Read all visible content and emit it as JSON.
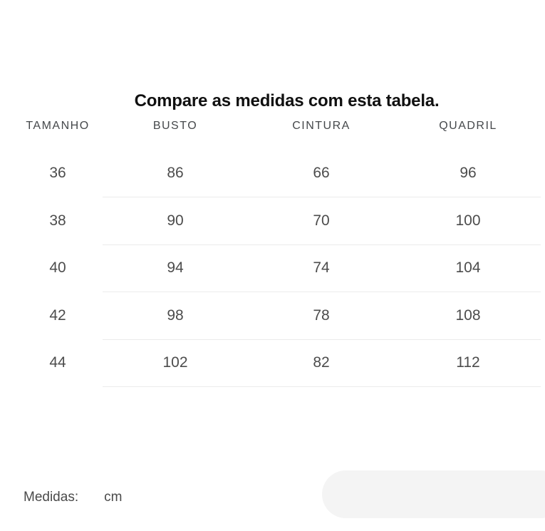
{
  "title": "Compare as medidas com esta tabela.",
  "table": {
    "headers": [
      "TAMANHO",
      "BUSTO",
      "CINTURA",
      "QUADRIL"
    ],
    "rows": [
      [
        "36",
        "86",
        "66",
        "96"
      ],
      [
        "38",
        "90",
        "70",
        "100"
      ],
      [
        "40",
        "94",
        "74",
        "104"
      ],
      [
        "42",
        "98",
        "78",
        "108"
      ],
      [
        "44",
        "102",
        "82",
        "112"
      ]
    ]
  },
  "footer": {
    "label": "Medidas:",
    "unit": "cm"
  },
  "colors": {
    "background": "#ffffff",
    "title_text": "#101010",
    "header_text": "#45484b",
    "cell_text": "#4c4c4c",
    "divider": "#ebebeb",
    "pill": "#f4f4f4"
  }
}
